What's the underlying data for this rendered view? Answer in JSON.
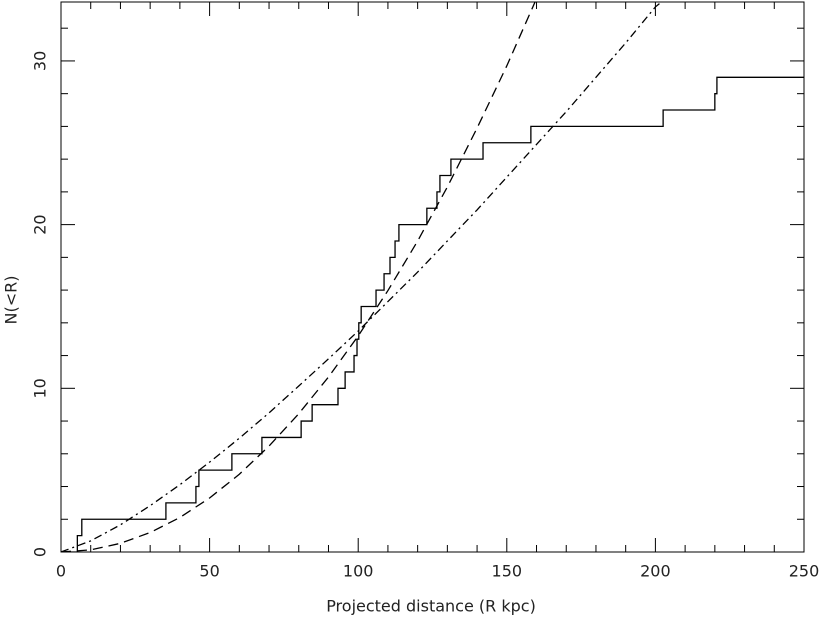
{
  "chart_data": {
    "type": "line",
    "xlabel": "Projected distance (R kpc)",
    "ylabel": "N(<R)",
    "xlim": [
      0,
      250
    ],
    "ylim": [
      0,
      33.6
    ],
    "xticks": [
      0,
      50,
      100,
      150,
      200,
      250
    ],
    "yticks": [
      0,
      10,
      20,
      30
    ],
    "xminorticks": [
      10,
      20,
      30,
      40,
      60,
      70,
      80,
      90,
      110,
      120,
      130,
      140,
      160,
      170,
      180,
      190,
      210,
      220,
      230,
      240
    ],
    "yminorticks": [
      2,
      4,
      6,
      8,
      12,
      14,
      16,
      18,
      22,
      24,
      26,
      28,
      32
    ],
    "series": [
      {
        "style": "step",
        "color": "#000000",
        "x": [
          0,
          5.5,
          7,
          35.3,
          45.4,
          46.4,
          57.5,
          67.6,
          80.8,
          84.5,
          93.2,
          95.6,
          98.6,
          99.6,
          100.2,
          101,
          106,
          108.7,
          110.7,
          112.4,
          113.7,
          123.1,
          126.5,
          127.5,
          131.2,
          142,
          158.1,
          202.6,
          220,
          220.7,
          250
        ],
        "values": [
          0,
          1,
          2,
          3,
          4,
          5,
          6,
          7,
          8,
          9,
          10,
          11,
          12,
          13,
          14,
          15,
          16,
          17,
          18,
          19,
          20,
          21,
          22,
          23,
          24,
          25,
          26,
          27,
          28,
          29,
          29
        ]
      },
      {
        "style": "dashed",
        "color": "#000000",
        "x": [
          0,
          10,
          20,
          30,
          40,
          50,
          60,
          70,
          80,
          90,
          100,
          110,
          120,
          130,
          140,
          150,
          159.5
        ],
        "values": [
          0,
          0.13,
          0.53,
          1.19,
          2.11,
          3.3,
          4.75,
          6.47,
          8.45,
          10.69,
          13.2,
          15.97,
          19.0,
          22.3,
          25.9,
          29.7,
          33.6
        ]
      },
      {
        "style": "dashdot",
        "color": "#000000",
        "x": [
          0,
          10,
          20,
          30,
          40,
          50,
          60,
          70,
          80,
          90,
          100,
          110,
          120,
          130,
          140,
          150,
          160,
          170,
          180,
          190,
          200,
          202
        ],
        "values": [
          0,
          0.68,
          1.66,
          2.83,
          4.11,
          5.49,
          6.95,
          8.5,
          10.14,
          11.8,
          13.5,
          15.3,
          17.1,
          19.0,
          20.9,
          22.9,
          24.9,
          26.9,
          29.0,
          31.1,
          33.3,
          33.6
        ]
      }
    ]
  }
}
